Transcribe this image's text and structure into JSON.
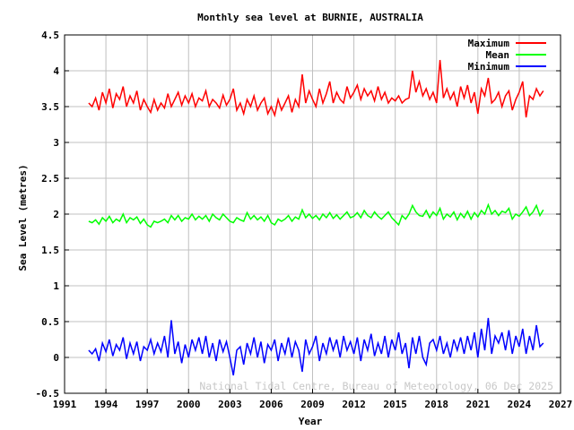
{
  "chart_data": {
    "type": "line",
    "title": "Monthly sea level at BURNIE, AUSTRALIA",
    "xlabel": "Year",
    "ylabel": "Sea Level (metres)",
    "xlim": [
      1991,
      2027
    ],
    "ylim": [
      -0.5,
      4.5
    ],
    "x_ticks": [
      "1991",
      "1994",
      "1997",
      "2000",
      "2003",
      "2006",
      "2009",
      "2012",
      "2015",
      "2018",
      "2021",
      "2024",
      "2027"
    ],
    "y_ticks": [
      "-0.5",
      "0",
      "0.5",
      "1",
      "1.5",
      "2",
      "2.5",
      "3",
      "3.5",
      "4",
      "4.5"
    ],
    "grid": true,
    "legend_position": "top-right",
    "credit": "National Tidal Centre, Bureau of Meteorology, 06 Dec 2025",
    "x": [
      1992.75,
      1993,
      1993.25,
      1993.5,
      1993.75,
      1994,
      1994.25,
      1994.5,
      1994.75,
      1995,
      1995.25,
      1995.5,
      1995.75,
      1996,
      1996.25,
      1996.5,
      1996.75,
      1997,
      1997.25,
      1997.5,
      1997.75,
      1998,
      1998.25,
      1998.5,
      1998.75,
      1999,
      1999.25,
      1999.5,
      1999.75,
      2000,
      2000.25,
      2000.5,
      2000.75,
      2001,
      2001.25,
      2001.5,
      2001.75,
      2002,
      2002.25,
      2002.5,
      2002.75,
      2003,
      2003.25,
      2003.5,
      2003.75,
      2004,
      2004.25,
      2004.5,
      2004.75,
      2005,
      2005.25,
      2005.5,
      2005.75,
      2006,
      2006.25,
      2006.5,
      2006.75,
      2007,
      2007.25,
      2007.5,
      2007.75,
      2008,
      2008.25,
      2008.5,
      2008.75,
      2009,
      2009.25,
      2009.5,
      2009.75,
      2010,
      2010.25,
      2010.5,
      2010.75,
      2011,
      2011.25,
      2011.5,
      2011.75,
      2012,
      2012.25,
      2012.5,
      2012.75,
      2013,
      2013.25,
      2013.5,
      2013.75,
      2014,
      2014.25,
      2014.5,
      2014.75,
      2015,
      2015.25,
      2015.5,
      2015.75,
      2016,
      2016.25,
      2016.5,
      2016.75,
      2017,
      2017.25,
      2017.5,
      2017.75,
      2018,
      2018.25,
      2018.5,
      2018.75,
      2019,
      2019.25,
      2019.5,
      2019.75,
      2020,
      2020.25,
      2020.5,
      2020.75,
      2021,
      2021.25,
      2021.5,
      2021.75,
      2022,
      2022.25,
      2022.5,
      2022.75,
      2023,
      2023.25,
      2023.5,
      2023.75,
      2024,
      2024.25,
      2024.5,
      2024.75,
      2025,
      2025.25,
      2025.5,
      2025.75
    ],
    "series": [
      {
        "name": "Maximum",
        "color": "#ff0000",
        "values": [
          3.55,
          3.5,
          3.62,
          3.45,
          3.7,
          3.55,
          3.75,
          3.48,
          3.68,
          3.6,
          3.78,
          3.5,
          3.65,
          3.55,
          3.72,
          3.45,
          3.6,
          3.5,
          3.42,
          3.6,
          3.45,
          3.55,
          3.48,
          3.68,
          3.5,
          3.6,
          3.7,
          3.52,
          3.65,
          3.55,
          3.68,
          3.5,
          3.62,
          3.58,
          3.72,
          3.5,
          3.6,
          3.55,
          3.48,
          3.66,
          3.52,
          3.6,
          3.75,
          3.45,
          3.55,
          3.4,
          3.6,
          3.5,
          3.65,
          3.45,
          3.55,
          3.62,
          3.4,
          3.5,
          3.38,
          3.6,
          3.45,
          3.55,
          3.65,
          3.42,
          3.6,
          3.5,
          3.95,
          3.55,
          3.72,
          3.6,
          3.5,
          3.75,
          3.55,
          3.68,
          3.85,
          3.55,
          3.7,
          3.6,
          3.55,
          3.78,
          3.62,
          3.7,
          3.8,
          3.6,
          3.75,
          3.65,
          3.72,
          3.58,
          3.78,
          3.6,
          3.7,
          3.55,
          3.62,
          3.58,
          3.65,
          3.55,
          3.6,
          3.62,
          4.0,
          3.7,
          3.85,
          3.65,
          3.75,
          3.6,
          3.7,
          3.55,
          4.15,
          3.62,
          3.75,
          3.6,
          3.7,
          3.5,
          3.78,
          3.62,
          3.8,
          3.55,
          3.7,
          3.4,
          3.75,
          3.65,
          3.9,
          3.55,
          3.6,
          3.7,
          3.5,
          3.65,
          3.72,
          3.45,
          3.6,
          3.7,
          3.85,
          3.35,
          3.65,
          3.6,
          3.75,
          3.65,
          3.72
        ]
      },
      {
        "name": "Mean",
        "color": "#00ff00",
        "values": [
          1.9,
          1.88,
          1.92,
          1.86,
          1.95,
          1.9,
          1.97,
          1.88,
          1.93,
          1.9,
          2.0,
          1.88,
          1.95,
          1.92,
          1.96,
          1.87,
          1.93,
          1.85,
          1.82,
          1.9,
          1.88,
          1.9,
          1.93,
          1.88,
          1.98,
          1.92,
          1.98,
          1.9,
          1.95,
          1.93,
          2.0,
          1.92,
          1.97,
          1.93,
          1.98,
          1.9,
          2.0,
          1.95,
          1.92,
          2.0,
          1.95,
          1.9,
          1.88,
          1.95,
          1.92,
          1.9,
          2.02,
          1.93,
          1.98,
          1.92,
          1.96,
          1.9,
          1.98,
          1.88,
          1.85,
          1.93,
          1.9,
          1.93,
          1.98,
          1.9,
          1.96,
          1.93,
          2.06,
          1.95,
          2.0,
          1.94,
          1.98,
          1.92,
          2.0,
          1.95,
          2.02,
          1.94,
          1.99,
          1.93,
          1.98,
          2.03,
          1.95,
          1.97,
          2.02,
          1.95,
          2.05,
          1.98,
          1.95,
          2.03,
          1.97,
          1.93,
          1.98,
          2.03,
          1.95,
          1.9,
          1.85,
          1.98,
          1.93,
          2.0,
          2.12,
          2.03,
          1.98,
          1.97,
          2.05,
          1.95,
          2.03,
          1.98,
          2.08,
          1.93,
          2.0,
          1.96,
          2.03,
          1.92,
          2.01,
          1.95,
          2.04,
          1.93,
          2.02,
          1.96,
          2.05,
          2.0,
          2.13,
          2.0,
          2.05,
          1.98,
          2.04,
          2.02,
          2.08,
          1.93,
          2.0,
          1.97,
          2.03,
          2.1,
          1.98,
          2.03,
          2.12,
          1.98,
          2.06
        ]
      },
      {
        "name": "Minimum",
        "color": "#0000ff",
        "values": [
          0.1,
          0.05,
          0.12,
          -0.05,
          0.2,
          0.08,
          0.25,
          0.02,
          0.18,
          0.1,
          0.28,
          -0.02,
          0.2,
          0.05,
          0.22,
          -0.05,
          0.15,
          0.1,
          0.25,
          0.05,
          0.2,
          0.08,
          0.3,
          0.0,
          0.52,
          0.05,
          0.22,
          -0.08,
          0.18,
          0.0,
          0.25,
          0.1,
          0.28,
          0.05,
          0.3,
          0.0,
          0.2,
          -0.05,
          0.25,
          0.08,
          0.22,
          0.0,
          -0.25,
          0.1,
          0.15,
          -0.1,
          0.2,
          0.05,
          0.28,
          0.0,
          0.22,
          -0.08,
          0.18,
          0.1,
          0.25,
          -0.05,
          0.2,
          0.05,
          0.28,
          0.0,
          0.22,
          0.1,
          -0.2,
          0.25,
          0.05,
          0.15,
          0.3,
          -0.05,
          0.2,
          0.05,
          0.28,
          0.1,
          0.25,
          0.0,
          0.3,
          0.1,
          0.22,
          0.05,
          0.28,
          -0.05,
          0.25,
          0.1,
          0.33,
          0.02,
          0.2,
          0.05,
          0.3,
          0.0,
          0.25,
          0.1,
          0.35,
          0.05,
          0.2,
          -0.15,
          0.28,
          0.05,
          0.3,
          0.0,
          -0.1,
          0.2,
          0.25,
          0.1,
          0.3,
          0.05,
          0.2,
          0.0,
          0.25,
          0.1,
          0.28,
          0.05,
          0.3,
          0.1,
          0.35,
          0.0,
          0.4,
          0.1,
          0.55,
          0.05,
          0.3,
          0.2,
          0.35,
          0.1,
          0.38,
          0.05,
          0.3,
          0.15,
          0.4,
          0.05,
          0.3,
          0.1,
          0.45,
          0.15,
          0.2
        ]
      }
    ]
  }
}
